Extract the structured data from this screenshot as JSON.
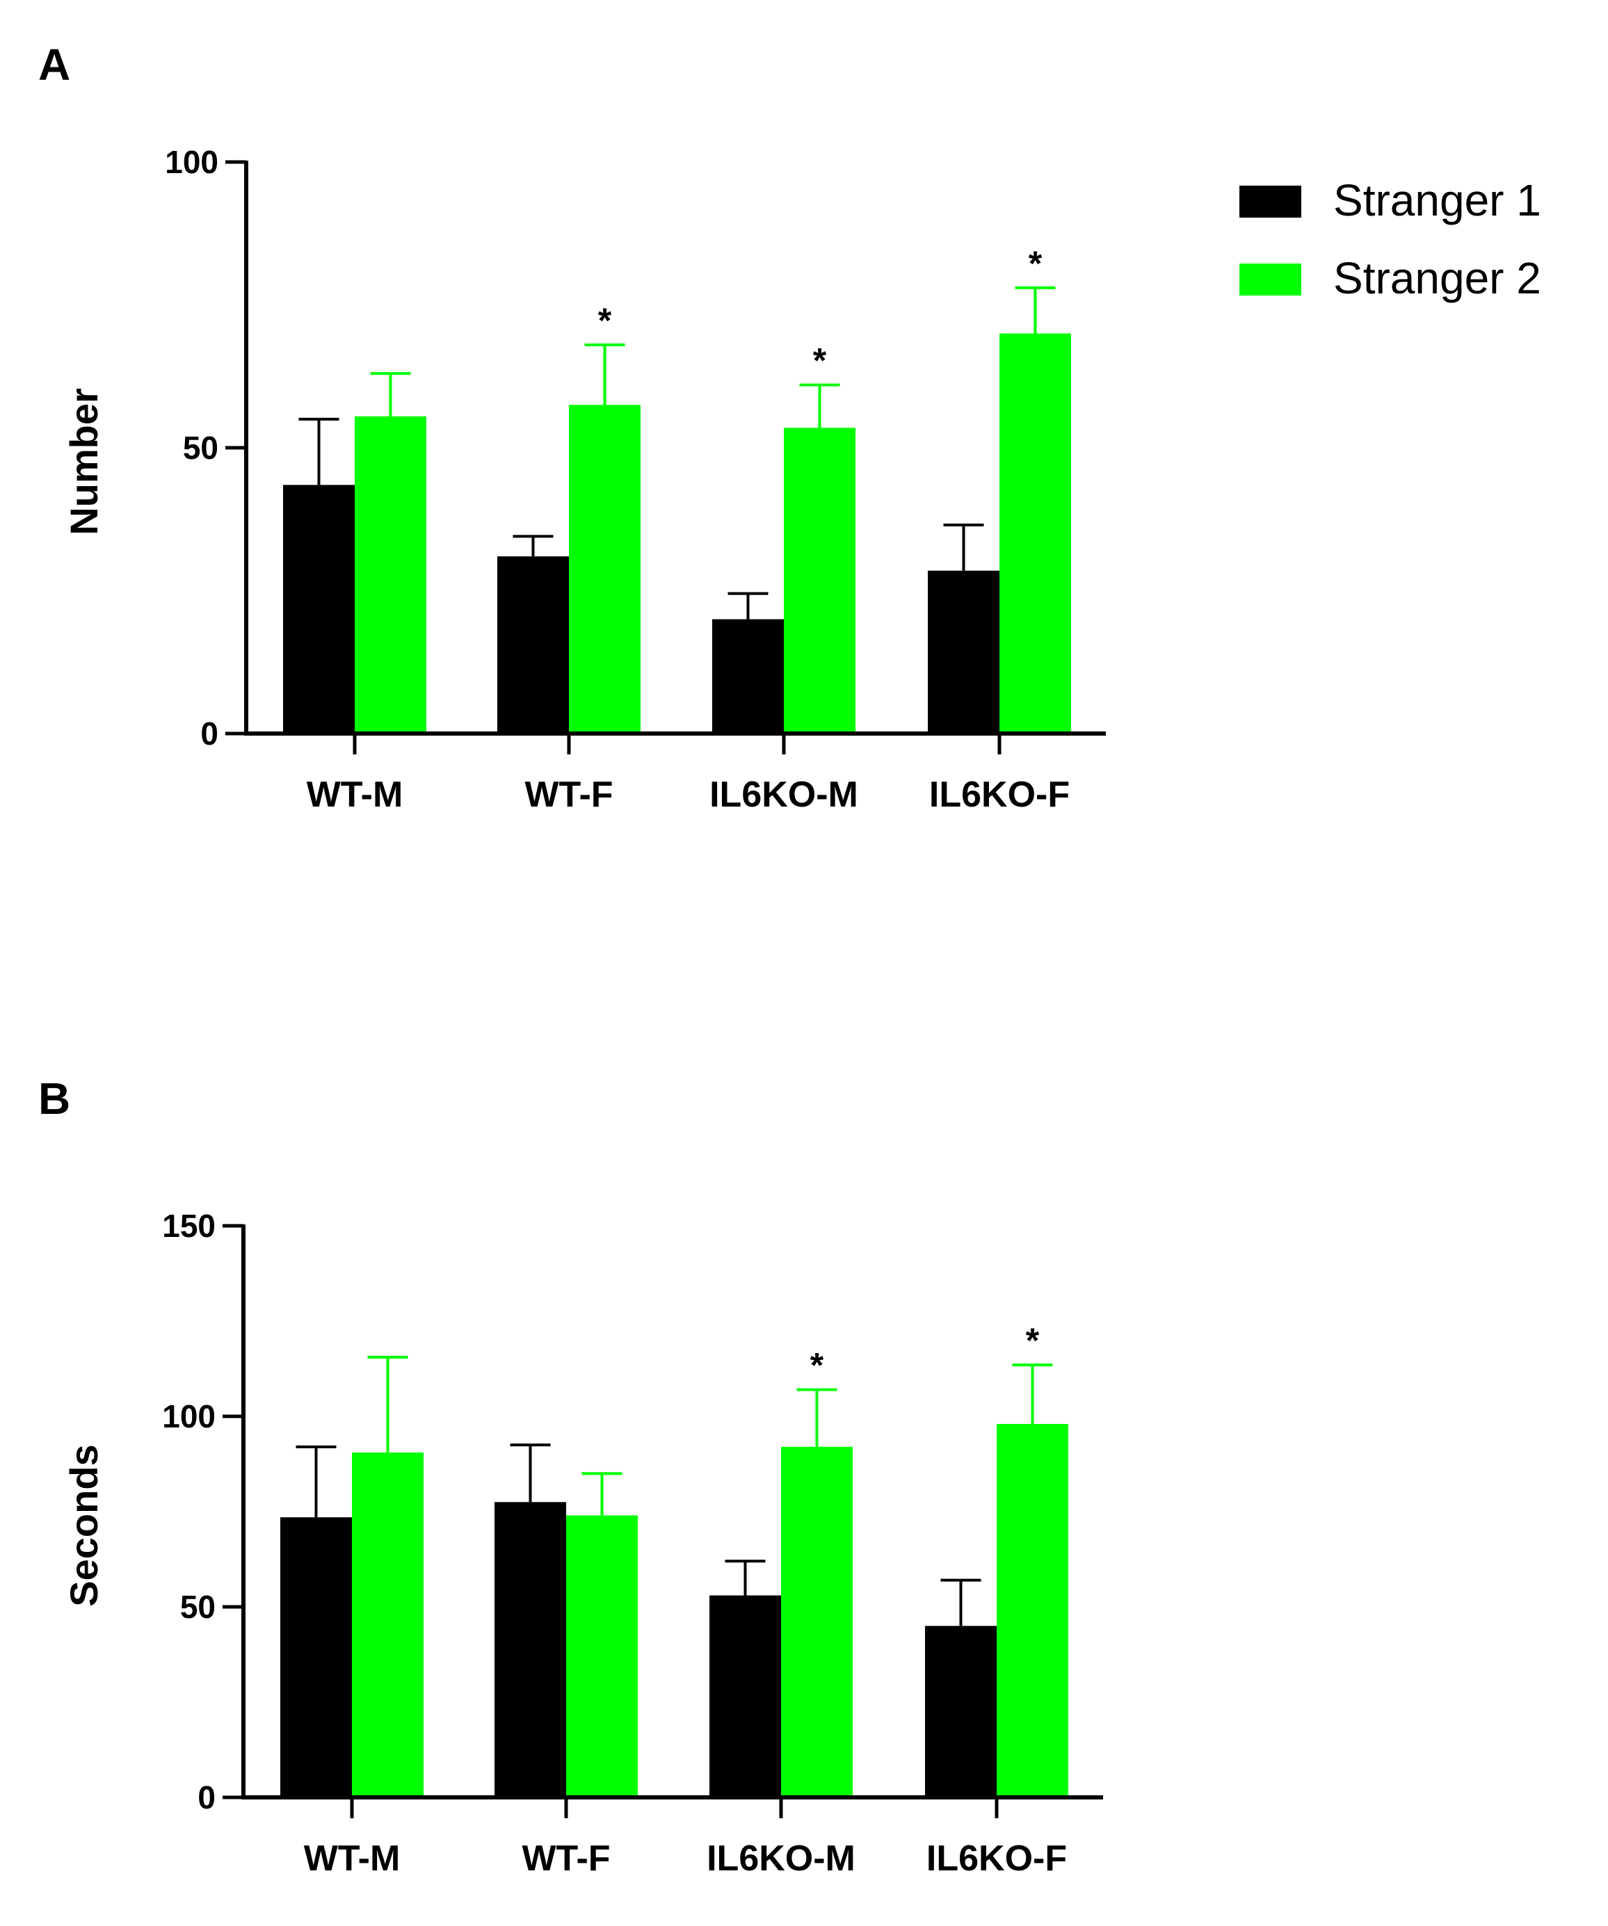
{
  "panels": [
    "A",
    "B"
  ],
  "legend": [
    {
      "name": "Stranger 1",
      "color": "#000000"
    },
    {
      "name": "Stranger 2",
      "color": "#00ff00"
    }
  ],
  "chart_data": [
    {
      "type": "bar",
      "panel_label": "A",
      "categories": [
        "WT-M",
        "WT-F",
        "IL6KO-M",
        "IL6KO-F"
      ],
      "ylabel": "Number",
      "ylim": [
        0,
        100
      ],
      "yticks": [
        0,
        50,
        100
      ],
      "series": [
        {
          "name": "Stranger 1",
          "color": "#000000",
          "values": [
            43.5,
            31,
            20,
            28.5
          ],
          "errors": [
            11.5,
            3.5,
            4.5,
            8
          ]
        },
        {
          "name": "Stranger 2",
          "color": "#00ff00",
          "values": [
            55.5,
            57.5,
            53.5,
            70
          ],
          "errors": [
            7.5,
            10.5,
            7.5,
            8
          ]
        }
      ],
      "significance": [
        {
          "category": "WT-F",
          "series": "Stranger 2",
          "label": "*"
        },
        {
          "category": "IL6KO-M",
          "series": "Stranger 2",
          "label": "*"
        },
        {
          "category": "IL6KO-F",
          "series": "Stranger 2",
          "label": "*"
        }
      ]
    },
    {
      "type": "bar",
      "panel_label": "B",
      "categories": [
        "WT-M",
        "WT-F",
        "IL6KO-M",
        "IL6KO-F"
      ],
      "ylabel": "Seconds",
      "ylim": [
        0,
        150
      ],
      "yticks": [
        0,
        50,
        100,
        150
      ],
      "series": [
        {
          "name": "Stranger 1",
          "color": "#000000",
          "values": [
            73.5,
            77.5,
            53,
            45
          ],
          "errors": [
            18.5,
            15,
            9,
            12
          ]
        },
        {
          "name": "Stranger 2",
          "color": "#00ff00",
          "values": [
            90.5,
            74,
            92,
            98
          ],
          "errors": [
            25,
            11,
            15,
            15.5
          ]
        }
      ],
      "significance": [
        {
          "category": "IL6KO-M",
          "series": "Stranger 2",
          "label": "*"
        },
        {
          "category": "IL6KO-F",
          "series": "Stranger 2",
          "label": "*"
        }
      ]
    }
  ]
}
